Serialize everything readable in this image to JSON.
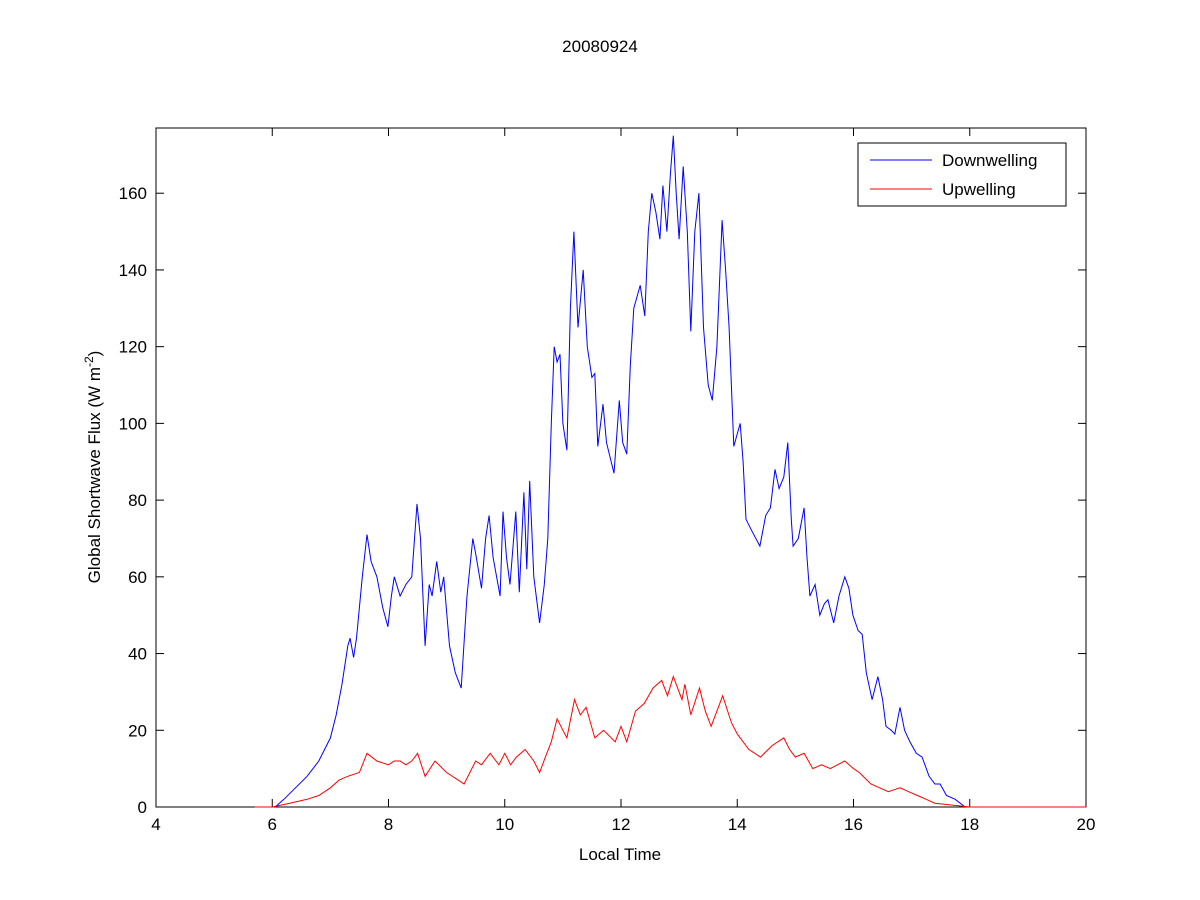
{
  "chart_data": {
    "type": "line",
    "title": "20080924",
    "xlabel": "Local Time",
    "ylabel": {
      "text": "Global Shortwave Flux (W m",
      "superscript": "-2",
      "suffix": ")"
    },
    "xlim": [
      4,
      20
    ],
    "ylim": [
      0,
      177
    ],
    "xticks": [
      4,
      6,
      8,
      10,
      12,
      14,
      16,
      18,
      20
    ],
    "yticks": [
      0,
      20,
      40,
      60,
      80,
      100,
      120,
      140,
      160
    ],
    "grid": false,
    "legend_placement": "top-right",
    "series": [
      {
        "name": "Downwelling",
        "color": "#0000ff",
        "points": [
          [
            6.0,
            0
          ],
          [
            6.05,
            0
          ],
          [
            6.2,
            2
          ],
          [
            6.4,
            5
          ],
          [
            6.6,
            8
          ],
          [
            6.8,
            12
          ],
          [
            7.0,
            18
          ],
          [
            7.1,
            24
          ],
          [
            7.2,
            32
          ],
          [
            7.3,
            42
          ],
          [
            7.34,
            44
          ],
          [
            7.4,
            39
          ],
          [
            7.45,
            44
          ],
          [
            7.55,
            60
          ],
          [
            7.63,
            71
          ],
          [
            7.7,
            64
          ],
          [
            7.8,
            60
          ],
          [
            7.9,
            52
          ],
          [
            7.99,
            47
          ],
          [
            8.05,
            55
          ],
          [
            8.1,
            60
          ],
          [
            8.2,
            55
          ],
          [
            8.3,
            58
          ],
          [
            8.4,
            60
          ],
          [
            8.49,
            79
          ],
          [
            8.55,
            70
          ],
          [
            8.63,
            42
          ],
          [
            8.7,
            58
          ],
          [
            8.75,
            55
          ],
          [
            8.83,
            64
          ],
          [
            8.9,
            56
          ],
          [
            8.95,
            60
          ],
          [
            9.05,
            42
          ],
          [
            9.15,
            35
          ],
          [
            9.25,
            31
          ],
          [
            9.35,
            55
          ],
          [
            9.45,
            70
          ],
          [
            9.5,
            66
          ],
          [
            9.6,
            57
          ],
          [
            9.67,
            70
          ],
          [
            9.73,
            76
          ],
          [
            9.8,
            65
          ],
          [
            9.92,
            55
          ],
          [
            9.97,
            77
          ],
          [
            10.03,
            65
          ],
          [
            10.09,
            58
          ],
          [
            10.19,
            77
          ],
          [
            10.25,
            56
          ],
          [
            10.33,
            82
          ],
          [
            10.38,
            62
          ],
          [
            10.43,
            85
          ],
          [
            10.5,
            60
          ],
          [
            10.6,
            48
          ],
          [
            10.68,
            58
          ],
          [
            10.74,
            70
          ],
          [
            10.8,
            100
          ],
          [
            10.85,
            120
          ],
          [
            10.9,
            116
          ],
          [
            10.95,
            118
          ],
          [
            11.0,
            100
          ],
          [
            11.07,
            93
          ],
          [
            11.13,
            130
          ],
          [
            11.19,
            150
          ],
          [
            11.26,
            125
          ],
          [
            11.35,
            140
          ],
          [
            11.42,
            120
          ],
          [
            11.5,
            112
          ],
          [
            11.55,
            113
          ],
          [
            11.6,
            94
          ],
          [
            11.69,
            105
          ],
          [
            11.75,
            95
          ],
          [
            11.88,
            87
          ],
          [
            11.97,
            106
          ],
          [
            12.03,
            95
          ],
          [
            12.1,
            92
          ],
          [
            12.16,
            115
          ],
          [
            12.22,
            130
          ],
          [
            12.33,
            136
          ],
          [
            12.41,
            128
          ],
          [
            12.47,
            150
          ],
          [
            12.53,
            160
          ],
          [
            12.6,
            155
          ],
          [
            12.67,
            148
          ],
          [
            12.72,
            162
          ],
          [
            12.79,
            150
          ],
          [
            12.85,
            165
          ],
          [
            12.9,
            175
          ],
          [
            12.95,
            160
          ],
          [
            13.0,
            148
          ],
          [
            13.07,
            167
          ],
          [
            13.14,
            150
          ],
          [
            13.2,
            124
          ],
          [
            13.27,
            150
          ],
          [
            13.34,
            160
          ],
          [
            13.42,
            125
          ],
          [
            13.5,
            110
          ],
          [
            13.57,
            106
          ],
          [
            13.65,
            120
          ],
          [
            13.74,
            153
          ],
          [
            13.8,
            140
          ],
          [
            13.86,
            125
          ],
          [
            13.94,
            94
          ],
          [
            14.05,
            100
          ],
          [
            14.1,
            90
          ],
          [
            14.15,
            75
          ],
          [
            14.25,
            72
          ],
          [
            14.39,
            68
          ],
          [
            14.49,
            76
          ],
          [
            14.57,
            78
          ],
          [
            14.65,
            88
          ],
          [
            14.72,
            83
          ],
          [
            14.8,
            86
          ],
          [
            14.87,
            95
          ],
          [
            14.93,
            75
          ],
          [
            14.96,
            68
          ],
          [
            15.05,
            70
          ],
          [
            15.15,
            78
          ],
          [
            15.2,
            65
          ],
          [
            15.25,
            55
          ],
          [
            15.34,
            58
          ],
          [
            15.42,
            50
          ],
          [
            15.5,
            53
          ],
          [
            15.56,
            54
          ],
          [
            15.66,
            48
          ],
          [
            15.75,
            55
          ],
          [
            15.85,
            60
          ],
          [
            15.92,
            57
          ],
          [
            15.99,
            50
          ],
          [
            16.08,
            46
          ],
          [
            16.15,
            45
          ],
          [
            16.22,
            35
          ],
          [
            16.32,
            28
          ],
          [
            16.42,
            34
          ],
          [
            16.5,
            28
          ],
          [
            16.56,
            21
          ],
          [
            16.65,
            20
          ],
          [
            16.71,
            19
          ],
          [
            16.8,
            26
          ],
          [
            16.88,
            20
          ],
          [
            16.97,
            17
          ],
          [
            17.08,
            14
          ],
          [
            17.18,
            13
          ],
          [
            17.3,
            8
          ],
          [
            17.4,
            6
          ],
          [
            17.49,
            6
          ],
          [
            17.6,
            3
          ],
          [
            17.75,
            2
          ],
          [
            17.92,
            0
          ],
          [
            18.0,
            0
          ]
        ]
      },
      {
        "name": "Upwelling",
        "color": "#ff0000",
        "points": [
          [
            5.7,
            0
          ],
          [
            6.0,
            0
          ],
          [
            6.1,
            0.3
          ],
          [
            6.3,
            1
          ],
          [
            6.6,
            2
          ],
          [
            6.8,
            3
          ],
          [
            7.0,
            5
          ],
          [
            7.15,
            7
          ],
          [
            7.3,
            8
          ],
          [
            7.5,
            9
          ],
          [
            7.63,
            14
          ],
          [
            7.8,
            12
          ],
          [
            8.0,
            11
          ],
          [
            8.1,
            12
          ],
          [
            8.2,
            12
          ],
          [
            8.3,
            11
          ],
          [
            8.4,
            12
          ],
          [
            8.5,
            14
          ],
          [
            8.63,
            8
          ],
          [
            8.8,
            12
          ],
          [
            9.0,
            9
          ],
          [
            9.2,
            7
          ],
          [
            9.3,
            6
          ],
          [
            9.4,
            9
          ],
          [
            9.5,
            12
          ],
          [
            9.6,
            11
          ],
          [
            9.75,
            14
          ],
          [
            9.9,
            11
          ],
          [
            10.0,
            14
          ],
          [
            10.1,
            11
          ],
          [
            10.2,
            13
          ],
          [
            10.35,
            15
          ],
          [
            10.5,
            12
          ],
          [
            10.6,
            9
          ],
          [
            10.7,
            13
          ],
          [
            10.8,
            17
          ],
          [
            10.9,
            23
          ],
          [
            11.0,
            20
          ],
          [
            11.07,
            18
          ],
          [
            11.2,
            28
          ],
          [
            11.3,
            24
          ],
          [
            11.4,
            26
          ],
          [
            11.55,
            18
          ],
          [
            11.7,
            20
          ],
          [
            11.9,
            17
          ],
          [
            12.0,
            21
          ],
          [
            12.1,
            17
          ],
          [
            12.25,
            25
          ],
          [
            12.4,
            27
          ],
          [
            12.55,
            31
          ],
          [
            12.7,
            33
          ],
          [
            12.8,
            29
          ],
          [
            12.9,
            34
          ],
          [
            13.05,
            28
          ],
          [
            13.1,
            32
          ],
          [
            13.2,
            24
          ],
          [
            13.35,
            31
          ],
          [
            13.45,
            25
          ],
          [
            13.55,
            21
          ],
          [
            13.75,
            29
          ],
          [
            13.9,
            22
          ],
          [
            14.0,
            19
          ],
          [
            14.2,
            15
          ],
          [
            14.4,
            13
          ],
          [
            14.6,
            16
          ],
          [
            14.8,
            18
          ],
          [
            14.9,
            15
          ],
          [
            15.0,
            13
          ],
          [
            15.15,
            14
          ],
          [
            15.3,
            10
          ],
          [
            15.45,
            11
          ],
          [
            15.6,
            10
          ],
          [
            15.85,
            12
          ],
          [
            16.0,
            10
          ],
          [
            16.1,
            9
          ],
          [
            16.3,
            6
          ],
          [
            16.45,
            5
          ],
          [
            16.6,
            4
          ],
          [
            16.8,
            5
          ],
          [
            16.95,
            4
          ],
          [
            17.1,
            3
          ],
          [
            17.25,
            2
          ],
          [
            17.4,
            1
          ],
          [
            17.7,
            0.5
          ],
          [
            18.0,
            0
          ],
          [
            18.3,
            0
          ],
          [
            19.2,
            0
          ],
          [
            20.0,
            0
          ]
        ]
      }
    ]
  }
}
